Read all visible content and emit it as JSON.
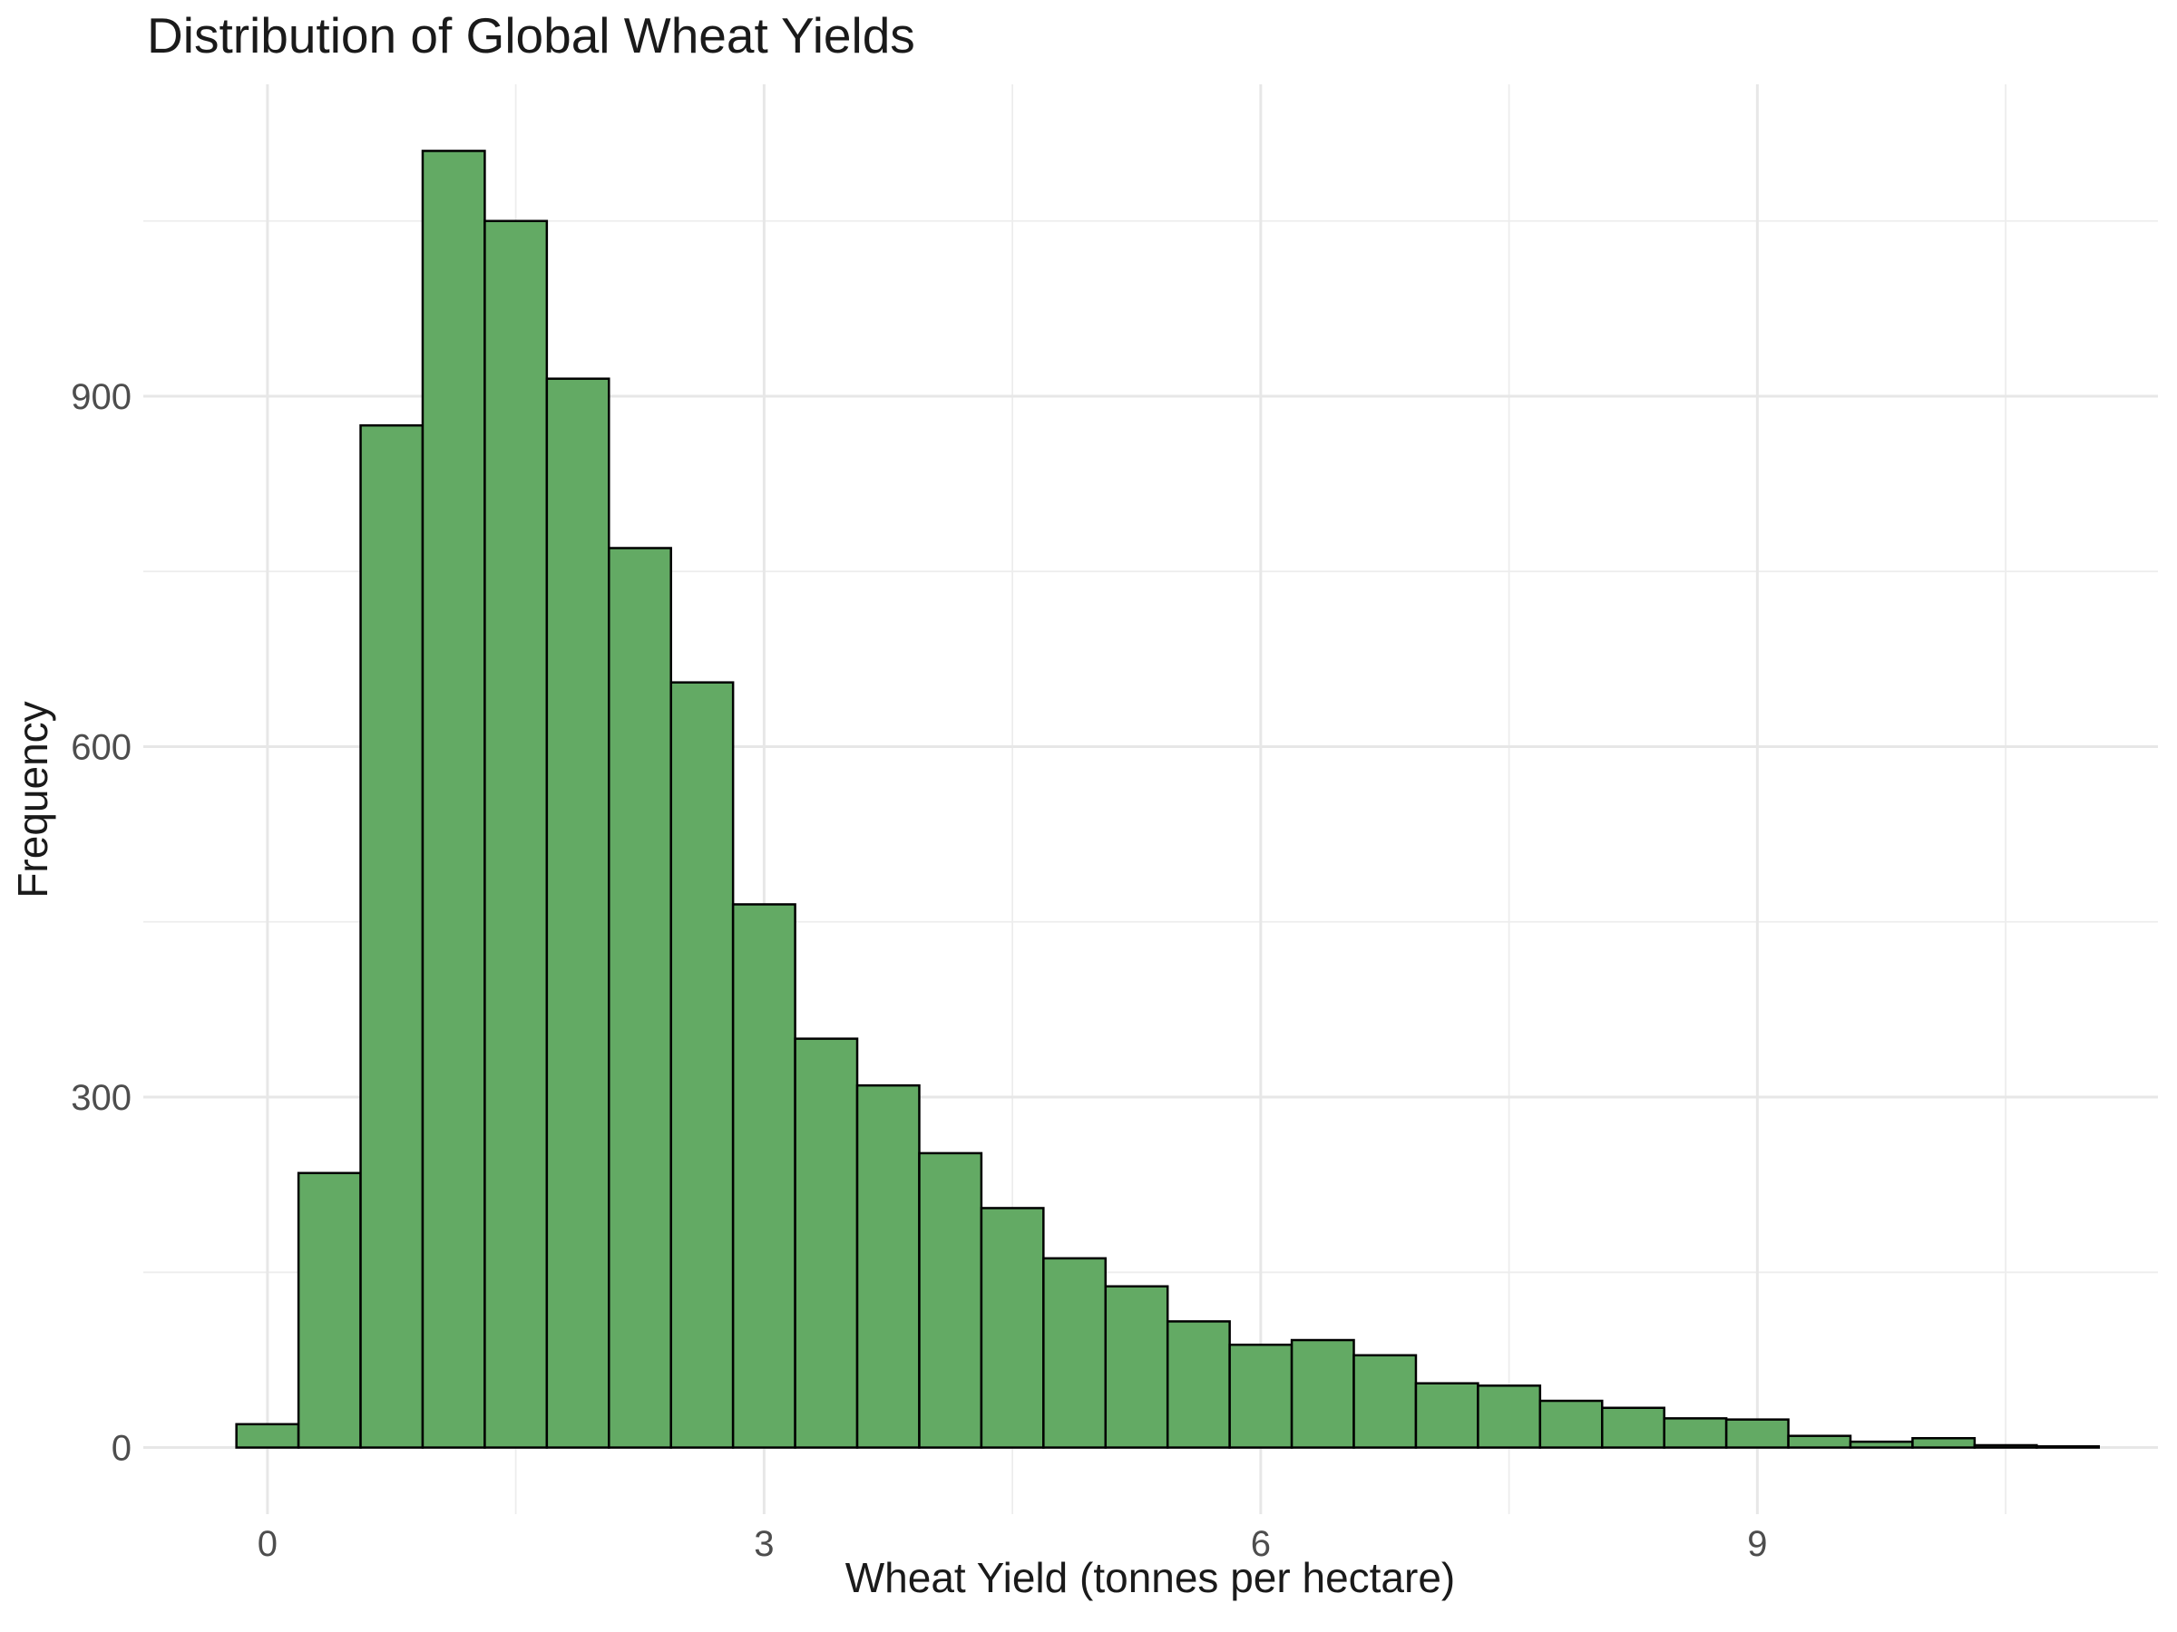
{
  "chart_data": {
    "type": "bar",
    "subtype": "histogram",
    "title": "Distribution of Global Wheat Yields",
    "xlabel": "Wheat Yield (tonnes per hectare)",
    "ylabel": "Frequency",
    "bin_start": -0.1875,
    "bin_width": 0.375,
    "counts": [
      20,
      235,
      875,
      1110,
      1050,
      915,
      770,
      655,
      465,
      350,
      310,
      252,
      205,
      162,
      138,
      108,
      88,
      92,
      79,
      55,
      53,
      40,
      34,
      25,
      24,
      10,
      5,
      8,
      2,
      1
    ],
    "x_ticks": [
      0,
      3,
      6,
      9
    ],
    "x_minor_gridlines": [
      1.5,
      4.5,
      7.5,
      10.5
    ],
    "y_ticks": [
      0,
      300,
      600,
      900
    ],
    "y_minor_gridlines": [
      150,
      450,
      750,
      1050
    ],
    "xlim": [
      -0.75,
      11.42
    ],
    "ylim": [
      -57,
      1167
    ],
    "legend": "none",
    "grid": "on",
    "colors": {
      "bar_fill": "#63aa64",
      "bar_stroke": "#000000",
      "grid_major": "#e7e7e7",
      "grid_minor": "#ededed",
      "tick_label": "#4d4d4d",
      "title_text": "#1a1a1a",
      "background": "#ffffff"
    }
  }
}
